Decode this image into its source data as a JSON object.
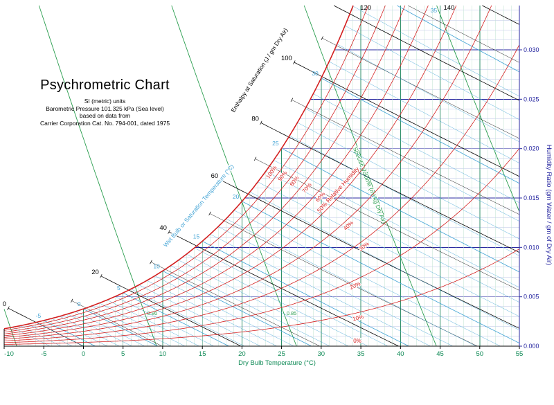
{
  "chart_data": {
    "type": "line",
    "title": "Psychrometric Chart",
    "subtitle_lines": [
      "SI (metric) units",
      "Barometric Pressure 101.325 kPa (Sea level)",
      "based on data from",
      "Carrier Corporation Cat. No. 794-001, dated 1975"
    ],
    "barometric_pressure_kpa": 101.325,
    "x_axis": {
      "label": "Dry Bulb Temperature (°C)",
      "min": -10,
      "max": 55,
      "major_step": 5,
      "minor_step": 1,
      "ticks": [
        -10,
        -5,
        0,
        5,
        10,
        15,
        20,
        25,
        30,
        35,
        40,
        45,
        50,
        55
      ]
    },
    "y_axis": {
      "label": "Humidity Ratio (gm Water / gm of Dry Air)",
      "min": 0.0,
      "max": 0.03,
      "major_step": 0.005,
      "minor_step": 0.001,
      "ticks": [
        "0.000",
        "0.005",
        "0.010",
        "0.015",
        "0.020",
        "0.025",
        "0.030"
      ]
    },
    "grid": {
      "h_major": "#2a2aa0",
      "h_minor": "#b9c3e6",
      "v_major": "#2f8f68",
      "v_minor": "#bfe3d2",
      "x_text": "#0f8a56",
      "y_text": "#23239f"
    },
    "families": {
      "relative_humidity": {
        "name": "Relative Humidity",
        "unit": "%",
        "color": "#d42020",
        "curve_values": [
          10,
          20,
          30,
          40,
          50,
          60,
          70,
          80,
          90,
          100
        ],
        "labeled_values": [
          100,
          90,
          80,
          70,
          60,
          40,
          30,
          20,
          10,
          0
        ],
        "long_label": "50% Relative Humidity"
      },
      "wet_bulb": {
        "name": "Wet Bulb or Saturation Temperature (°C)",
        "color": "#45a5d6",
        "line_step": 1,
        "labeled_values": [
          -5,
          0,
          5,
          10,
          15,
          20,
          25,
          30,
          35
        ]
      },
      "enthalpy": {
        "name": "Enthalpy at Saturation (J / gm Dry Air)",
        "color": "#000000",
        "line_step": 10,
        "labeled_values": [
          0,
          20,
          40,
          60,
          80,
          100,
          120,
          140
        ]
      },
      "specific_volume": {
        "name": "Specific Volume (m³/kg Dry Air)",
        "color": "#2b9e4f",
        "values": [
          0.75,
          0.8,
          0.85,
          0.9,
          0.95
        ],
        "labeled_values": [
          "0.80",
          "0.85"
        ]
      }
    }
  }
}
